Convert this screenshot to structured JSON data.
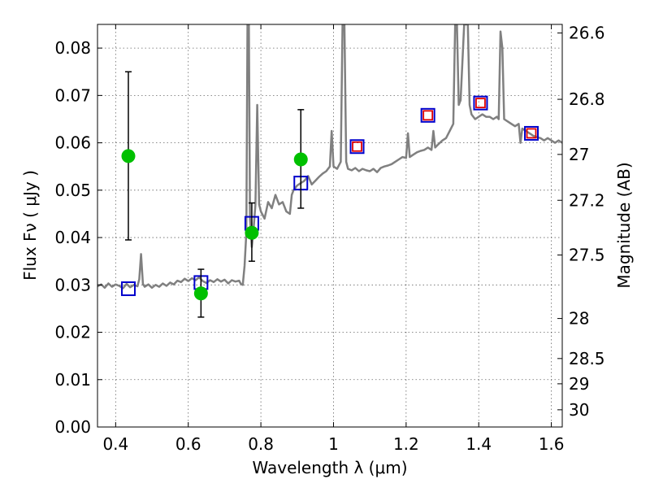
{
  "chart_data": {
    "type": "line",
    "xlabel": "Wavelength  λ (μm)",
    "ylabel": "Flux  Fν  ( μJy )",
    "ylabel_right": "Magnitude (AB)",
    "xlim": [
      0.35,
      1.63
    ],
    "ylim": [
      0.0,
      0.085
    ],
    "grid": true,
    "x_ticks": [
      0.4,
      0.6,
      0.8,
      1.0,
      1.2,
      1.4,
      1.6
    ],
    "x_tick_labels": [
      "0.4",
      "0.6",
      "0.8",
      "1",
      "1.2",
      "1.4",
      "1.6"
    ],
    "y_ticks": [
      0.0,
      0.01,
      0.02,
      0.03,
      0.04,
      0.05,
      0.06,
      0.07,
      0.08
    ],
    "y_tick_labels": [
      "0.00",
      "0.01",
      "0.02",
      "0.03",
      "0.04",
      "0.05",
      "0.06",
      "0.07",
      "0.08"
    ],
    "right_ticks": [
      {
        "label": "26.6",
        "mag": 26.6
      },
      {
        "label": "26.8",
        "mag": 26.8
      },
      {
        "label": "27",
        "mag": 27.0
      },
      {
        "label": "27.2",
        "mag": 27.2
      },
      {
        "label": "27.5",
        "mag": 27.5
      },
      {
        "label": "28",
        "mag": 28.0
      },
      {
        "label": "28.5",
        "mag": 28.5
      },
      {
        "label": "29",
        "mag": 29.0
      },
      {
        "label": "30",
        "mag": 30.0
      }
    ],
    "series": [
      {
        "kind": "spectrum",
        "color": "#808080",
        "points": [
          [
            0.35,
            0.0297
          ],
          [
            0.36,
            0.0301
          ],
          [
            0.37,
            0.0294
          ],
          [
            0.38,
            0.0303
          ],
          [
            0.39,
            0.0296
          ],
          [
            0.4,
            0.0301
          ],
          [
            0.41,
            0.0298
          ],
          [
            0.42,
            0.0293
          ],
          [
            0.43,
            0.0302
          ],
          [
            0.44,
            0.0295
          ],
          [
            0.45,
            0.03
          ],
          [
            0.46,
            0.0297
          ],
          [
            0.465,
            0.0312
          ],
          [
            0.47,
            0.0365
          ],
          [
            0.475,
            0.0302
          ],
          [
            0.48,
            0.0296
          ],
          [
            0.49,
            0.0301
          ],
          [
            0.5,
            0.0294
          ],
          [
            0.51,
            0.03
          ],
          [
            0.52,
            0.0296
          ],
          [
            0.53,
            0.0303
          ],
          [
            0.54,
            0.0298
          ],
          [
            0.55,
            0.0305
          ],
          [
            0.56,
            0.0301
          ],
          [
            0.57,
            0.0309
          ],
          [
            0.58,
            0.0306
          ],
          [
            0.59,
            0.0313
          ],
          [
            0.6,
            0.0308
          ],
          [
            0.61,
            0.0314
          ],
          [
            0.62,
            0.031
          ],
          [
            0.63,
            0.0316
          ],
          [
            0.64,
            0.0308
          ],
          [
            0.65,
            0.0304
          ],
          [
            0.66,
            0.031
          ],
          [
            0.67,
            0.0306
          ],
          [
            0.68,
            0.0312
          ],
          [
            0.69,
            0.0307
          ],
          [
            0.7,
            0.0311
          ],
          [
            0.71,
            0.0303
          ],
          [
            0.72,
            0.031
          ],
          [
            0.73,
            0.0307
          ],
          [
            0.74,
            0.0309
          ],
          [
            0.745,
            0.0302
          ],
          [
            0.75,
            0.03
          ],
          [
            0.755,
            0.034
          ],
          [
            0.76,
            0.041
          ],
          [
            0.763,
            0.085
          ],
          [
            0.767,
            0.085
          ],
          [
            0.77,
            0.044
          ],
          [
            0.775,
            0.038
          ],
          [
            0.78,
            0.042
          ],
          [
            0.785,
            0.047
          ],
          [
            0.79,
            0.068
          ],
          [
            0.795,
            0.047
          ],
          [
            0.8,
            0.0455
          ],
          [
            0.81,
            0.044
          ],
          [
            0.82,
            0.0475
          ],
          [
            0.83,
            0.0462
          ],
          [
            0.84,
            0.049
          ],
          [
            0.85,
            0.047
          ],
          [
            0.86,
            0.0475
          ],
          [
            0.87,
            0.0455
          ],
          [
            0.88,
            0.045
          ],
          [
            0.885,
            0.049
          ],
          [
            0.89,
            0.05
          ],
          [
            0.9,
            0.051
          ],
          [
            0.91,
            0.0515
          ],
          [
            0.92,
            0.052
          ],
          [
            0.93,
            0.053
          ],
          [
            0.94,
            0.0512
          ],
          [
            0.95,
            0.052
          ],
          [
            0.96,
            0.0528
          ],
          [
            0.97,
            0.0535
          ],
          [
            0.98,
            0.054
          ],
          [
            0.99,
            0.055
          ],
          [
            0.995,
            0.0625
          ],
          [
            1.0,
            0.055
          ],
          [
            1.01,
            0.0545
          ],
          [
            1.02,
            0.056
          ],
          [
            1.025,
            0.085
          ],
          [
            1.03,
            0.085
          ],
          [
            1.035,
            0.056
          ],
          [
            1.04,
            0.0545
          ],
          [
            1.05,
            0.0542
          ],
          [
            1.06,
            0.0547
          ],
          [
            1.07,
            0.054
          ],
          [
            1.08,
            0.0545
          ],
          [
            1.09,
            0.0542
          ],
          [
            1.1,
            0.054
          ],
          [
            1.11,
            0.0545
          ],
          [
            1.12,
            0.0538
          ],
          [
            1.13,
            0.0547
          ],
          [
            1.14,
            0.055
          ],
          [
            1.15,
            0.0552
          ],
          [
            1.16,
            0.0555
          ],
          [
            1.17,
            0.056
          ],
          [
            1.18,
            0.0565
          ],
          [
            1.19,
            0.057
          ],
          [
            1.2,
            0.0568
          ],
          [
            1.205,
            0.062
          ],
          [
            1.21,
            0.057
          ],
          [
            1.22,
            0.0575
          ],
          [
            1.23,
            0.058
          ],
          [
            1.24,
            0.0583
          ],
          [
            1.25,
            0.0585
          ],
          [
            1.26,
            0.059
          ],
          [
            1.27,
            0.0585
          ],
          [
            1.275,
            0.0625
          ],
          [
            1.28,
            0.059
          ],
          [
            1.29,
            0.0598
          ],
          [
            1.3,
            0.0605
          ],
          [
            1.31,
            0.061
          ],
          [
            1.32,
            0.0625
          ],
          [
            1.33,
            0.064
          ],
          [
            1.335,
            0.085
          ],
          [
            1.34,
            0.085
          ],
          [
            1.345,
            0.068
          ],
          [
            1.35,
            0.069
          ],
          [
            1.36,
            0.085
          ],
          [
            1.37,
            0.085
          ],
          [
            1.375,
            0.068
          ],
          [
            1.38,
            0.066
          ],
          [
            1.39,
            0.065
          ],
          [
            1.4,
            0.0655
          ],
          [
            1.41,
            0.066
          ],
          [
            1.42,
            0.0655
          ],
          [
            1.43,
            0.0655
          ],
          [
            1.44,
            0.065
          ],
          [
            1.45,
            0.0655
          ],
          [
            1.455,
            0.065
          ],
          [
            1.46,
            0.0835
          ],
          [
            1.465,
            0.08
          ],
          [
            1.47,
            0.065
          ],
          [
            1.48,
            0.0645
          ],
          [
            1.49,
            0.064
          ],
          [
            1.5,
            0.0635
          ],
          [
            1.51,
            0.064
          ],
          [
            1.515,
            0.06
          ],
          [
            1.52,
            0.063
          ],
          [
            1.53,
            0.0625
          ],
          [
            1.54,
            0.062
          ],
          [
            1.55,
            0.0615
          ],
          [
            1.56,
            0.0612
          ],
          [
            1.57,
            0.061
          ],
          [
            1.58,
            0.0605
          ],
          [
            1.59,
            0.061
          ],
          [
            1.6,
            0.0605
          ],
          [
            1.61,
            0.06
          ],
          [
            1.62,
            0.0605
          ],
          [
            1.63,
            0.06
          ]
        ]
      },
      {
        "kind": "model-photometry",
        "marker": "square",
        "color": "#0000cc",
        "points": [
          [
            0.435,
            0.0292
          ],
          [
            0.635,
            0.0305
          ],
          [
            0.775,
            0.043
          ],
          [
            0.91,
            0.0515
          ],
          [
            1.065,
            0.0592
          ],
          [
            1.26,
            0.0658
          ],
          [
            1.405,
            0.0684
          ],
          [
            1.545,
            0.062
          ]
        ]
      },
      {
        "kind": "detections",
        "marker": "circle",
        "color": "#00c000",
        "points": [
          {
            "x": 0.435,
            "y": 0.0572,
            "err": [
              0.0395,
              0.075
            ]
          },
          {
            "x": 0.635,
            "y": 0.0282,
            "err": [
              0.0232,
              0.0333
            ]
          },
          {
            "x": 0.775,
            "y": 0.041,
            "err": [
              0.035,
              0.0473
            ]
          },
          {
            "x": 0.91,
            "y": 0.0565,
            "err": [
              0.0462,
              0.067
            ]
          }
        ]
      },
      {
        "kind": "upper-limits",
        "marker": "square",
        "color": "#e00000",
        "points": [
          [
            1.065,
            0.0592
          ],
          [
            1.26,
            0.0658
          ],
          [
            1.405,
            0.0684
          ],
          [
            1.545,
            0.062
          ]
        ]
      }
    ]
  }
}
